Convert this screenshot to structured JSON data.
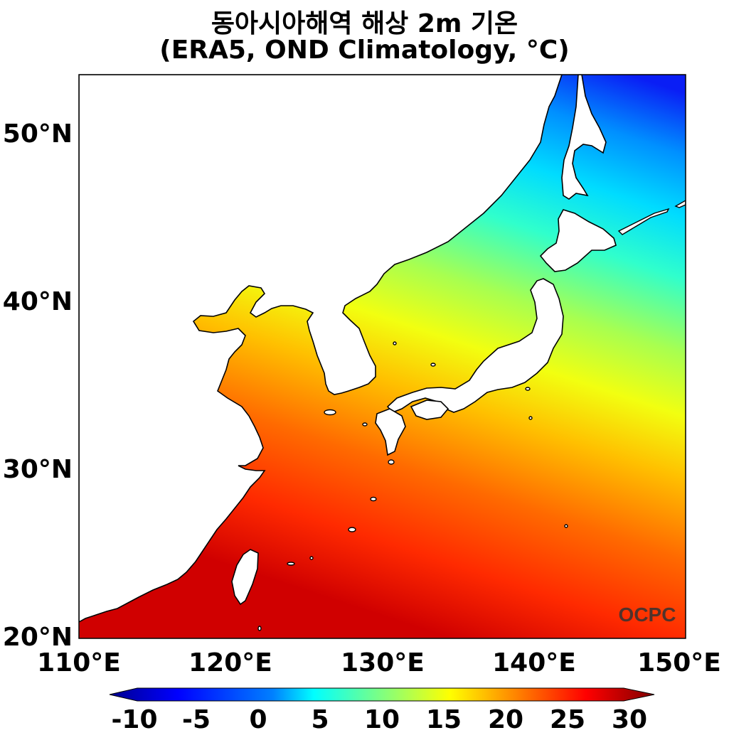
{
  "title": {
    "line1": "동아시아해역 해상 2m 기온",
    "line2": "(ERA5, OND Climatology, °C)"
  },
  "map": {
    "lon_range": [
      110,
      150
    ],
    "lat_range": [
      20,
      53.5
    ],
    "lat_ticks": [
      "50°N",
      "40°N",
      "30°N",
      "20°N"
    ],
    "lon_ticks": [
      "110°E",
      "120°E",
      "130°E",
      "140°E",
      "150°E"
    ],
    "watermark": "OCPC",
    "variable": "2m air temperature over sea",
    "land_color": "#ffffff",
    "coastline_color": "#000000"
  },
  "colorbar": {
    "ticks": [
      "-10",
      "-5",
      "0",
      "5",
      "10",
      "15",
      "20",
      "25",
      "30"
    ],
    "range": [
      -10,
      30
    ],
    "extend": "both",
    "colormap": "jet"
  }
}
